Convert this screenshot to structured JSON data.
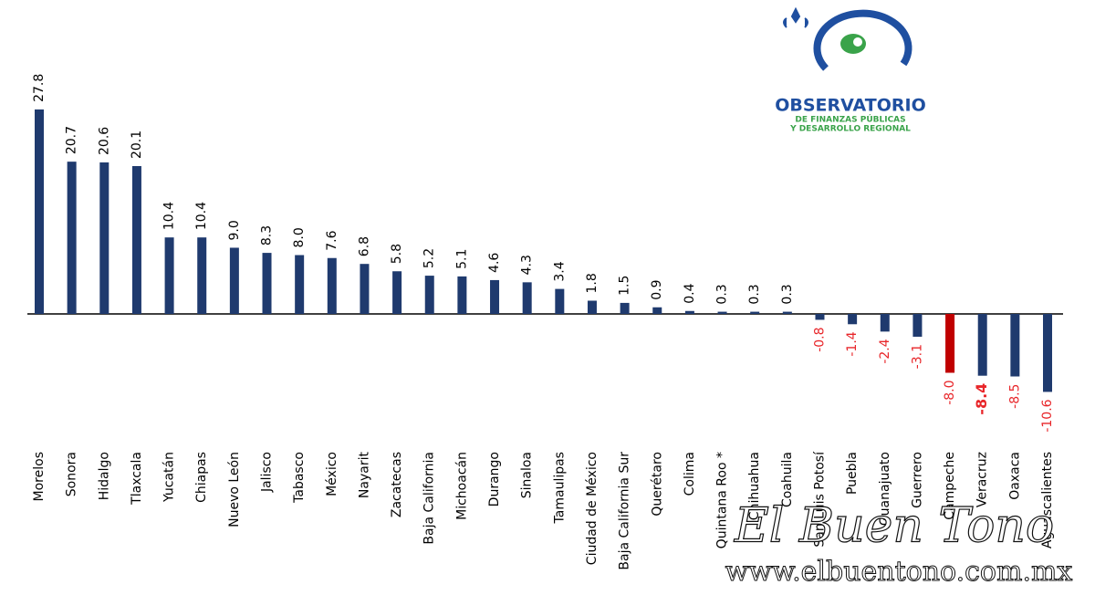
{
  "chart_data": {
    "type": "bar",
    "categories": [
      "Morelos",
      "Sonora",
      "Hidalgo",
      "Tlaxcala",
      "Yucatán",
      "Chiapas",
      "Nuevo León",
      "Jalisco",
      "Tabasco",
      "México",
      "Nayarit",
      "Zacatecas",
      "Baja California",
      "Michoacán",
      "Durango",
      "Sinaloa",
      "Tamaulipas",
      "Ciudad de México",
      "Baja California Sur",
      "Querétaro",
      "Colima",
      "Quintana Roo *",
      "Chihuahua",
      "Coahuila",
      "San Luis Potosí",
      "Puebla",
      "Guanajuato",
      "Guerrero",
      "Campeche",
      "Veracruz",
      "Oaxaca",
      "Aguascalientes"
    ],
    "values": [
      27.8,
      20.7,
      20.6,
      20.1,
      10.4,
      10.4,
      9.0,
      8.3,
      8.0,
      7.6,
      6.8,
      5.8,
      5.2,
      5.1,
      4.6,
      4.3,
      3.4,
      1.8,
      1.5,
      0.9,
      0.4,
      0.3,
      0.3,
      0.3,
      -0.8,
      -1.4,
      -2.4,
      -3.1,
      -8.0,
      -8.4,
      -8.5,
      -10.6
    ],
    "value_labels": [
      "27.8",
      "20.7",
      "20.6",
      "20.1",
      "10.4",
      "10.4",
      "9.0",
      "8.3",
      "8.0",
      "7.6",
      "6.8",
      "5.8",
      "5.2",
      "5.1",
      "4.6",
      "4.3",
      "3.4",
      "1.8",
      "1.5",
      "0.9",
      "0.4",
      "0.3",
      "0.3",
      "0.3",
      "-0.8",
      "-1.4",
      "-2.4",
      "-3.1",
      "-8.0",
      "-8.4",
      "-8.5",
      "-10.6"
    ],
    "color": "#1f3a6e",
    "highlight_color": "#c00000",
    "highlight_index": 28,
    "emphasized_index": 29,
    "positive_label_color": "#000000",
    "negative_label_color": "#e8262a"
  },
  "logo": {
    "name": "OBSERVATORIO",
    "line1": "DE FINANZAS PÚBLICAS",
    "line2": "Y DESARROLLO REGIONAL"
  },
  "watermark": {
    "name": "El Buen Tono",
    "url": "www.elbuentono.com.mx"
  }
}
